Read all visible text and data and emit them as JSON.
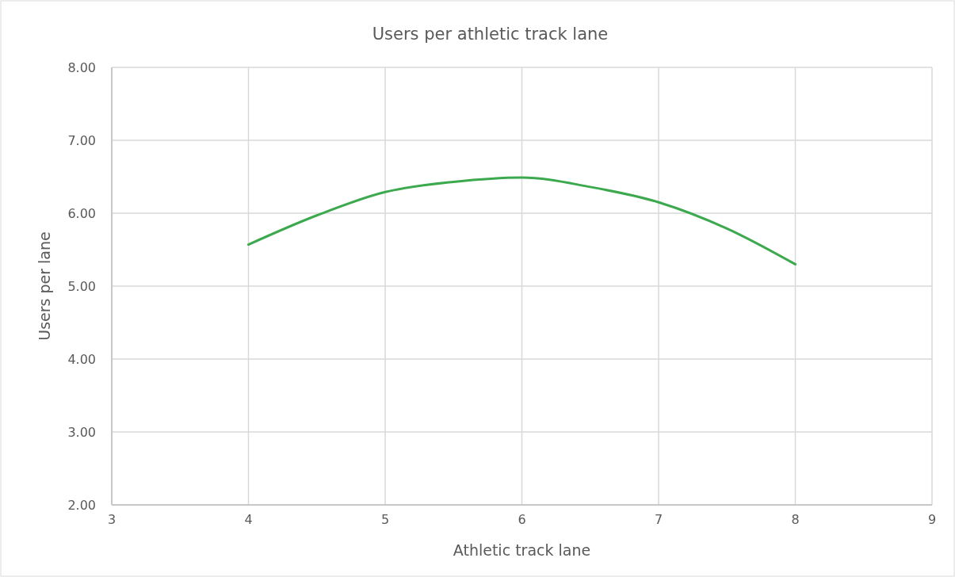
{
  "chart_data": {
    "type": "line",
    "title": "Users per athletic track lane",
    "xlabel": "Athletic track lane",
    "ylabel": "Users per lane",
    "x": [
      4,
      4.5,
      5,
      5.5,
      6,
      6.5,
      7,
      7.5,
      8
    ],
    "series": [
      {
        "color": "#3da94f",
        "values": [
          5.57,
          5.97,
          6.29,
          6.43,
          6.49,
          6.36,
          6.15,
          5.79,
          5.3
        ]
      }
    ],
    "xlim": [
      3,
      9
    ],
    "xticks": [
      3,
      4,
      5,
      6,
      7,
      8,
      9
    ],
    "ylim": [
      2,
      8
    ],
    "yticks": [
      {
        "value": 2,
        "label": "2.00"
      },
      {
        "value": 3,
        "label": "3.00"
      },
      {
        "value": 4,
        "label": "4.00"
      },
      {
        "value": 5,
        "label": "5.00"
      },
      {
        "value": 6,
        "label": "6.00"
      },
      {
        "value": 7,
        "label": "7.00"
      },
      {
        "value": 8,
        "label": "8.00"
      }
    ],
    "grid": true,
    "marker": "none",
    "line_style": "solid"
  }
}
